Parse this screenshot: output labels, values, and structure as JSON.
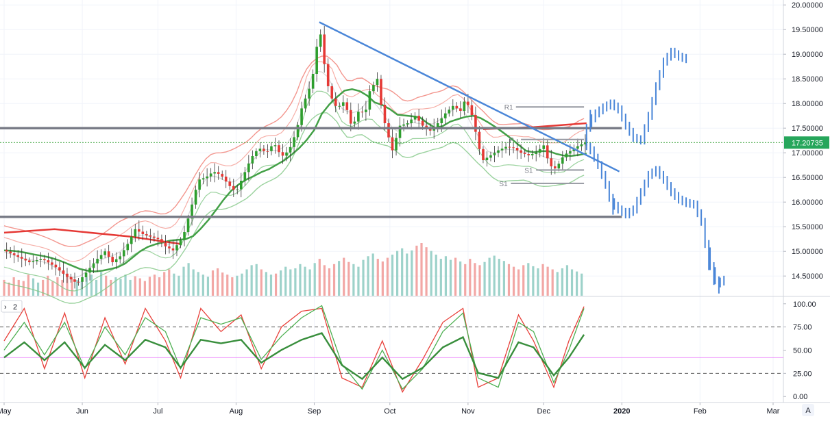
{
  "chart_data": [
    {
      "type": "candlestick",
      "panel": "price",
      "y_range": [
        14.1,
        20.1
      ],
      "y_ticks": [
        "20.00000",
        "19.50000",
        "19.00000",
        "18.50000",
        "18.00000",
        "17.50000",
        "17.00000",
        "16.50000",
        "16.00000",
        "15.50000",
        "15.00000",
        "14.50000"
      ],
      "y_tick_values": [
        20.0,
        19.5,
        19.0,
        18.5,
        18.0,
        17.5,
        17.0,
        16.5,
        16.0,
        15.5,
        15.0,
        14.5
      ],
      "x_ticks": [
        "May",
        "Jun",
        "Jul",
        "Aug",
        "Sep",
        "Oct",
        "Nov",
        "Dec",
        "2020",
        "Feb",
        "Mar"
      ],
      "x_tick_days": [
        0,
        31,
        61,
        92,
        123,
        153,
        184,
        214,
        245,
        276,
        305
      ],
      "x_range_days": [
        0,
        309
      ],
      "last_price": 17.20735,
      "last_price_label": "17.20735",
      "horizontal_levels": [
        17.5,
        15.7
      ],
      "pivots": [
        {
          "label": "R1",
          "value": 17.93,
          "day_start": 203,
          "day_end": 230
        },
        {
          "label": "P",
          "value": 17.27,
          "day_start": 205,
          "day_end": 230
        },
        {
          "label": "S1",
          "value": 16.65,
          "day_start": 211,
          "day_end": 230
        },
        {
          "label": "S1",
          "value": 16.38,
          "day_start": 201,
          "day_end": 230
        }
      ],
      "trendline": {
        "from": {
          "day": 125,
          "value": 19.65
        },
        "to": {
          "day": 244,
          "value": 16.62
        }
      },
      "price_path": [
        [
          0,
          15.02
        ],
        [
          5,
          14.9
        ],
        [
          10,
          14.78
        ],
        [
          15,
          14.85
        ],
        [
          20,
          14.7
        ],
        [
          25,
          14.48
        ],
        [
          29,
          14.35
        ],
        [
          33,
          14.6
        ],
        [
          37,
          14.85
        ],
        [
          40,
          15.0
        ],
        [
          43,
          14.78
        ],
        [
          46,
          14.9
        ],
        [
          49,
          15.15
        ],
        [
          52,
          15.45
        ],
        [
          55,
          15.35
        ],
        [
          58,
          15.3
        ],
        [
          61,
          15.25
        ],
        [
          64,
          15.1
        ],
        [
          67,
          15.02
        ],
        [
          71,
          15.3
        ],
        [
          74,
          15.85
        ],
        [
          77,
          16.45
        ],
        [
          80,
          16.5
        ],
        [
          83,
          16.62
        ],
        [
          86,
          16.55
        ],
        [
          89,
          16.35
        ],
        [
          92,
          16.2
        ],
        [
          95,
          16.55
        ],
        [
          98,
          16.9
        ],
        [
          101,
          17.1
        ],
        [
          104,
          17.0
        ],
        [
          107,
          17.2
        ],
        [
          110,
          16.92
        ],
        [
          113,
          17.05
        ],
        [
          116,
          17.45
        ],
        [
          118,
          17.9
        ],
        [
          121,
          18.3
        ],
        [
          123,
          18.7
        ],
        [
          125,
          19.6
        ],
        [
          127,
          18.8
        ],
        [
          129,
          18.2
        ],
        [
          132,
          17.9
        ],
        [
          135,
          18.05
        ],
        [
          138,
          17.5
        ],
        [
          141,
          17.9
        ],
        [
          143,
          17.75
        ],
        [
          145,
          18.25
        ],
        [
          148,
          18.5
        ],
        [
          150,
          17.8
        ],
        [
          152,
          17.4
        ],
        [
          154,
          17.05
        ],
        [
          157,
          17.55
        ],
        [
          160,
          17.6
        ],
        [
          163,
          17.75
        ],
        [
          166,
          17.55
        ],
        [
          169,
          17.45
        ],
        [
          172,
          17.6
        ],
        [
          175,
          17.8
        ],
        [
          178,
          17.95
        ],
        [
          181,
          17.85
        ],
        [
          183,
          18.1
        ],
        [
          186,
          17.7
        ],
        [
          188,
          17.15
        ],
        [
          190,
          16.85
        ],
        [
          193,
          16.95
        ],
        [
          196,
          17.05
        ],
        [
          199,
          17.12
        ],
        [
          202,
          17.1
        ],
        [
          205,
          17.0
        ],
        [
          208,
          16.95
        ],
        [
          211,
          17.0
        ],
        [
          214,
          17.15
        ],
        [
          216,
          16.8
        ],
        [
          218,
          16.65
        ],
        [
          220,
          16.78
        ],
        [
          222,
          16.95
        ],
        [
          225,
          17.05
        ],
        [
          228,
          17.15
        ],
        [
          231,
          17.22
        ]
      ],
      "projection_up": [
        [
          231,
          17.22
        ],
        [
          233,
          17.6
        ],
        [
          236,
          17.8
        ],
        [
          239,
          17.92
        ],
        [
          242,
          18.0
        ],
        [
          245,
          17.88
        ],
        [
          248,
          17.55
        ],
        [
          251,
          17.3
        ],
        [
          254,
          17.25
        ],
        [
          257,
          17.75
        ],
        [
          260,
          18.35
        ],
        [
          263,
          18.85
        ],
        [
          266,
          19.05
        ],
        [
          269,
          18.95
        ],
        [
          272,
          18.9
        ]
      ],
      "projection_down": [
        [
          231,
          17.22
        ],
        [
          234,
          17.05
        ],
        [
          237,
          16.75
        ],
        [
          240,
          16.35
        ],
        [
          242,
          16.0
        ],
        [
          245,
          15.85
        ],
        [
          248,
          15.75
        ],
        [
          251,
          15.85
        ],
        [
          254,
          16.2
        ],
        [
          257,
          16.55
        ],
        [
          260,
          16.65
        ],
        [
          263,
          16.45
        ],
        [
          266,
          16.2
        ],
        [
          269,
          16.05
        ],
        [
          272,
          15.98
        ],
        [
          275,
          15.95
        ],
        [
          278,
          15.6
        ],
        [
          280,
          15.0
        ],
        [
          282,
          14.6
        ],
        [
          284,
          14.35
        ],
        [
          286,
          14.4
        ]
      ],
      "volume": [
        0.3,
        0.25,
        0.35,
        0.3,
        0.28,
        0.4,
        0.33,
        0.25,
        0.3,
        0.38,
        0.27,
        0.35,
        0.3,
        0.42,
        0.36,
        0.3,
        0.28,
        0.35,
        0.4,
        0.3,
        0.45,
        0.38,
        0.3,
        0.35,
        0.32,
        0.4,
        0.3,
        0.37,
        0.33,
        0.28,
        0.36,
        0.4,
        0.35,
        0.45,
        0.5,
        0.42,
        0.38,
        0.55,
        0.62,
        0.5,
        0.45,
        0.4,
        0.36,
        0.48,
        0.52,
        0.44,
        0.4,
        0.35,
        0.38,
        0.42,
        0.5,
        0.58,
        0.6,
        0.5,
        0.45,
        0.4,
        0.42,
        0.48,
        0.55,
        0.5,
        0.52,
        0.6,
        0.55,
        0.5,
        0.62,
        0.7,
        0.58,
        0.52,
        0.6,
        0.66,
        0.72,
        0.64,
        0.6,
        0.55,
        0.68,
        0.75,
        0.8,
        0.7,
        0.65,
        0.72,
        0.78,
        0.85,
        0.9,
        0.8,
        0.86,
        0.95,
        1.0,
        0.92,
        0.85,
        0.78,
        0.7,
        0.75,
        0.68,
        0.72,
        0.65,
        0.6,
        0.7,
        0.62,
        0.58,
        0.64,
        0.72,
        0.76,
        0.7,
        0.66,
        0.6,
        0.55,
        0.5,
        0.58,
        0.62,
        0.56,
        0.52,
        0.6,
        0.55,
        0.5,
        0.45,
        0.52,
        0.58,
        0.5,
        0.46,
        0.42
      ]
    },
    {
      "type": "line",
      "panel": "oscillator",
      "panel_label": "2",
      "y_range": [
        -5,
        105
      ],
      "y_ticks": [
        "100.00",
        "75.00",
        "50.00",
        "25.00",
        "0.00"
      ],
      "y_tick_values": [
        100,
        75,
        50,
        25,
        0
      ],
      "reference_levels": [
        75,
        42,
        25
      ],
      "series": [
        {
          "color": "#e8403a",
          "points": [
            [
              0,
              60
            ],
            [
              8,
              95
            ],
            [
              16,
              30
            ],
            [
              24,
              90
            ],
            [
              32,
              20
            ],
            [
              40,
              85
            ],
            [
              48,
              35
            ],
            [
              56,
              95
            ],
            [
              64,
              60
            ],
            [
              70,
              20
            ],
            [
              78,
              95
            ],
            [
              86,
              70
            ],
            [
              94,
              88
            ],
            [
              102,
              30
            ],
            [
              110,
              75
            ],
            [
              118,
              92
            ],
            [
              126,
              95
            ],
            [
              134,
              20
            ],
            [
              142,
              10
            ],
            [
              150,
              60
            ],
            [
              158,
              5
            ],
            [
              166,
              40
            ],
            [
              174,
              80
            ],
            [
              182,
              95
            ],
            [
              188,
              10
            ],
            [
              196,
              20
            ],
            [
              204,
              88
            ],
            [
              210,
              60
            ],
            [
              218,
              10
            ],
            [
              224,
              60
            ],
            [
              230,
              97
            ]
          ]
        },
        {
          "color": "#4caf50",
          "points": [
            [
              0,
              50
            ],
            [
              8,
              80
            ],
            [
              16,
              45
            ],
            [
              24,
              80
            ],
            [
              32,
              30
            ],
            [
              40,
              75
            ],
            [
              48,
              45
            ],
            [
              56,
              85
            ],
            [
              64,
              70
            ],
            [
              70,
              30
            ],
            [
              78,
              85
            ],
            [
              86,
              78
            ],
            [
              94,
              85
            ],
            [
              102,
              40
            ],
            [
              110,
              65
            ],
            [
              118,
              85
            ],
            [
              126,
              98
            ],
            [
              134,
              35
            ],
            [
              142,
              8
            ],
            [
              150,
              50
            ],
            [
              158,
              8
            ],
            [
              166,
              30
            ],
            [
              174,
              70
            ],
            [
              182,
              90
            ],
            [
              188,
              20
            ],
            [
              196,
              10
            ],
            [
              204,
              80
            ],
            [
              210,
              70
            ],
            [
              218,
              15
            ],
            [
              224,
              50
            ],
            [
              230,
              95
            ]
          ]
        }
      ]
    }
  ]
}
